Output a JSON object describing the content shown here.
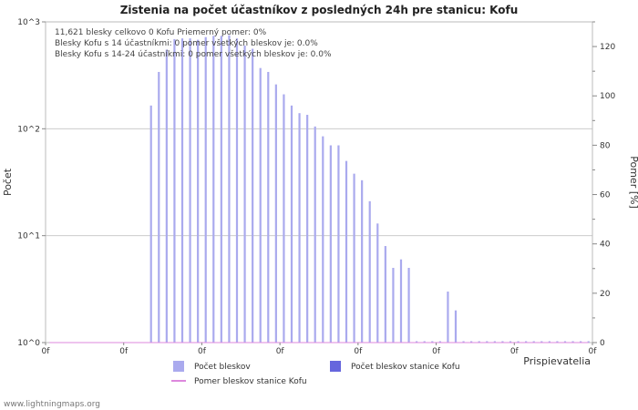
{
  "chart_data": {
    "type": "bar",
    "title": "Zistenia na počet účastníkov z posledných 24h pre stanicu: Kofu",
    "xlabel": "Prispievatelia",
    "ylabel_left": "Počet",
    "ylabel_right": "Pomer [%]",
    "yscale_left": "log",
    "ylim_left": [
      1,
      1000
    ],
    "left_tick_labels": [
      "10^0",
      "10^1",
      "10^2",
      "10^3"
    ],
    "ylim_right": [
      0,
      130
    ],
    "right_ticks": [
      0,
      20,
      40,
      60,
      80,
      100,
      120
    ],
    "x_tick_label": "0f",
    "x_tick_count": 8,
    "grid": true,
    "annotations": [
      "11,621 blesky celkovo      0 Kofu      Priemerný pomer: 0%",
      "Blesky Kofu s 14 účastníkmi: 0      pomer všetkých bleskov je: 0.0%",
      "Blesky Kofu s 14-24 účastníkmi: 0      pomer všetkých bleskov je: 0.0%"
    ],
    "series": [
      {
        "name": "Počet bleskov",
        "color": "#aaaaee",
        "values": [
          0,
          0,
          0,
          0,
          0,
          0,
          0,
          0,
          0,
          0,
          0,
          0,
          0,
          165,
          340,
          550,
          690,
          700,
          700,
          680,
          720,
          740,
          740,
          750,
          700,
          600,
          560,
          370,
          340,
          260,
          210,
          165,
          140,
          135,
          105,
          85,
          70,
          70,
          50,
          38,
          33,
          21,
          13,
          8,
          5,
          6,
          5,
          1,
          1,
          1,
          1,
          3,
          2,
          1,
          1,
          1,
          1,
          1,
          1,
          1,
          1,
          1,
          1,
          1,
          1,
          1,
          1,
          1,
          1,
          1
        ]
      },
      {
        "name": "Počet bleskov stanice Kofu",
        "color": "#6666dd",
        "values": [
          0,
          0,
          0,
          0,
          0,
          0,
          0,
          0,
          0,
          0,
          0,
          0,
          0,
          0,
          0,
          0,
          0,
          0,
          0,
          0,
          0,
          0,
          0,
          0,
          0,
          0,
          0,
          0,
          0,
          0,
          0,
          0,
          0,
          0,
          0,
          0,
          0,
          0,
          0,
          0,
          0,
          0,
          0,
          0,
          0,
          0,
          0,
          0,
          0,
          0,
          0,
          0,
          0,
          0,
          0,
          0,
          0,
          0,
          0,
          0,
          0,
          0,
          0,
          0,
          0,
          0,
          0,
          0,
          0,
          0
        ]
      },
      {
        "name": "Pomer bleskov stanice Kofu",
        "color": "#dd88dd",
        "type": "line",
        "values": [
          0,
          0,
          0,
          0,
          0,
          0,
          0,
          0,
          0,
          0,
          0,
          0,
          0,
          0,
          0,
          0,
          0,
          0,
          0,
          0,
          0,
          0,
          0,
          0,
          0,
          0,
          0,
          0,
          0,
          0,
          0,
          0,
          0,
          0,
          0,
          0,
          0,
          0,
          0,
          0,
          0,
          0,
          0,
          0,
          0,
          0,
          0,
          0,
          0,
          0,
          0,
          0,
          0,
          0,
          0,
          0,
          0,
          0,
          0,
          0,
          0,
          0,
          0,
          0,
          0,
          0,
          0,
          0,
          0,
          0
        ]
      }
    ]
  },
  "footer": {
    "source": "www.lightningmaps.org"
  }
}
